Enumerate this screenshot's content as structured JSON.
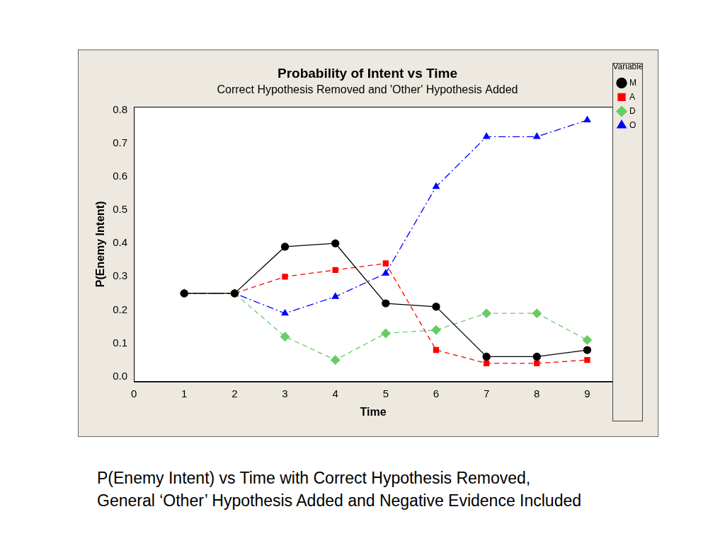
{
  "chart_data": {
    "type": "line",
    "title": "Probability of Intent vs Time",
    "subtitle": "Correct Hypothesis Removed and 'Other' Hypothesis Added",
    "x_label": "Time",
    "y_label": "P(Enemy Intent)",
    "x": [
      1,
      2,
      3,
      4,
      5,
      6,
      7,
      8,
      9
    ],
    "series": [
      {
        "name": "M",
        "color": "#000000",
        "marker": "circle",
        "line_style": "solid",
        "values": [
          0.25,
          0.25,
          0.39,
          0.4,
          0.22,
          0.21,
          0.06,
          0.06,
          0.08
        ]
      },
      {
        "name": "A",
        "color": "#ff0000",
        "marker": "square",
        "line_style": "dashed",
        "values": [
          0.25,
          0.25,
          0.3,
          0.32,
          0.34,
          0.08,
          0.04,
          0.04,
          0.05
        ]
      },
      {
        "name": "D",
        "color": "#66cc66",
        "marker": "diamond",
        "line_style": "dashed",
        "values": [
          0.25,
          0.25,
          0.12,
          0.05,
          0.13,
          0.14,
          0.19,
          0.19,
          0.11
        ]
      },
      {
        "name": "O",
        "color": "#0000ff",
        "marker": "triangle",
        "line_style": "dashdot",
        "values": [
          0.25,
          0.25,
          0.19,
          0.24,
          0.31,
          0.57,
          0.72,
          0.72,
          0.77
        ]
      }
    ],
    "xlim": [
      0,
      9.5
    ],
    "xticks": [
      0,
      1,
      2,
      3,
      4,
      5,
      6,
      7,
      8,
      9
    ],
    "ylim": [
      -0.015,
      0.81
    ],
    "yticks": [
      {
        "value": 0,
        "label": "0.0"
      },
      0.1,
      0.2,
      0.3,
      0.4,
      0.5,
      0.6,
      0.7,
      0.8
    ],
    "grid": false,
    "legend": "right",
    "legend_title": "Variable",
    "caption": [
      "P(Enemy Intent) vs Time with Correct Hypothesis Removed,",
      "General ‘Other’ Hypothesis Added and Negative Evidence Included"
    ]
  }
}
